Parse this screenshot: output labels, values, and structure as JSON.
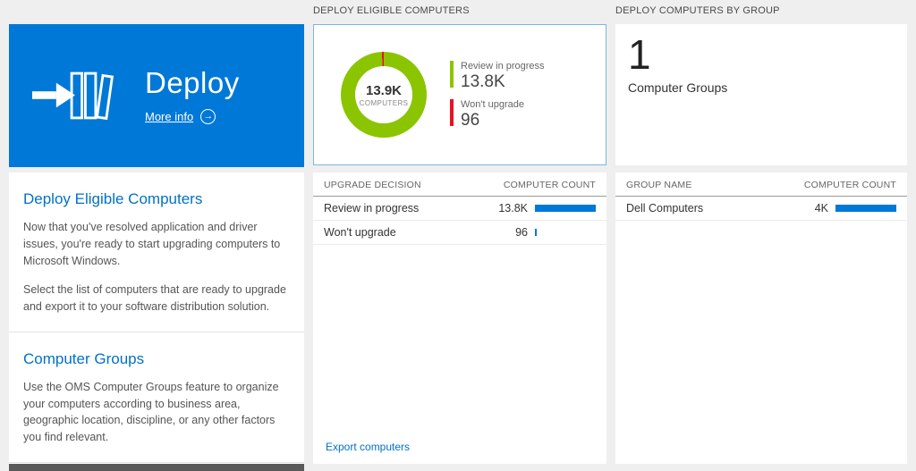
{
  "colors": {
    "tile_blue": "#0078d7",
    "link_blue": "#0072c6",
    "bar_blue": "#0078d7",
    "green": "#8bc400",
    "red": "#e81123"
  },
  "left": {
    "tile": {
      "title": "Deploy",
      "more_info": "More info"
    },
    "sections": [
      {
        "heading": "Deploy Eligible Computers",
        "paragraphs": [
          "Now that you've resolved application and driver issues, you're ready to start upgrading computers to Microsoft Windows.",
          "Select the list of computers that are ready to upgrade and export it to your software distribution solution."
        ]
      },
      {
        "heading": "Computer Groups",
        "paragraphs": [
          "Use the OMS Computer Groups feature to organize your computers according to business area, geographic location, discipline, or any other factors you find relevant."
        ]
      }
    ]
  },
  "middle": {
    "header": "DEPLOY ELIGIBLE COMPUTERS",
    "donut": {
      "center_value": "13.9K",
      "center_label": "COMPUTERS",
      "segments": [
        {
          "label": "Review in progress",
          "value": 13800,
          "display": "13.8K",
          "color": "#8bc400"
        },
        {
          "label": "Won't upgrade",
          "value": 96,
          "display": "96",
          "color": "#e81123"
        }
      ]
    },
    "table": {
      "columns": [
        "UPGRADE DECISION",
        "COMPUTER COUNT"
      ],
      "rows": [
        {
          "label": "Review in progress",
          "value": "13.8K",
          "bar_pct": 100
        },
        {
          "label": "Won't upgrade",
          "value": "96",
          "bar_pct": 3
        }
      ]
    },
    "footer_link": "Export computers"
  },
  "right": {
    "header": "DEPLOY COMPUTERS BY GROUP",
    "summary": {
      "value": "1",
      "label": "Computer Groups"
    },
    "table": {
      "columns": [
        "GROUP NAME",
        "COMPUTER COUNT"
      ],
      "rows": [
        {
          "label": "Dell Computers",
          "value": "4K",
          "bar_pct": 100
        }
      ]
    }
  },
  "chart_data": {
    "type": "pie",
    "title": "Deploy Eligible Computers",
    "center_label": "13.9K COMPUTERS",
    "categories": [
      "Review in progress",
      "Won't upgrade"
    ],
    "values": [
      13800,
      96
    ],
    "colors": [
      "#8bc400",
      "#e81123"
    ],
    "legend_position": "right"
  }
}
